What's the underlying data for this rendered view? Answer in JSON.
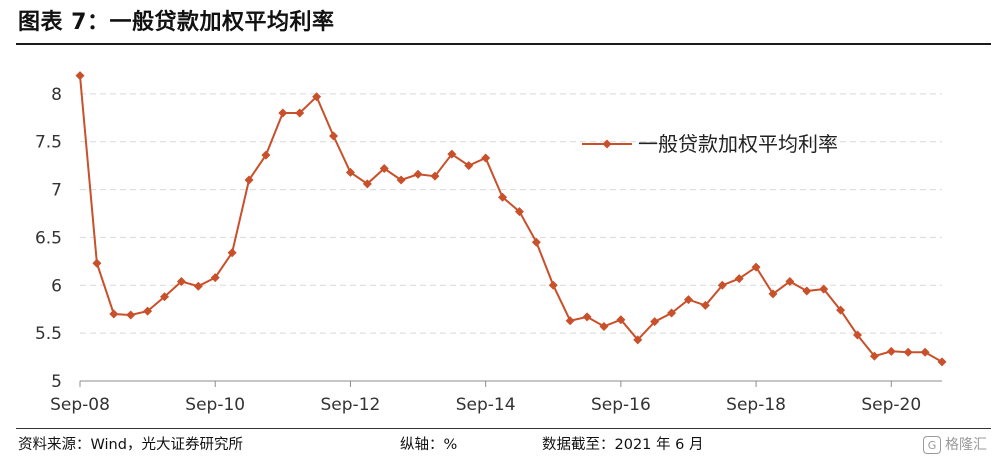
{
  "header": {
    "title": "图表 7：一般贷款加权平均利率"
  },
  "footer": {
    "source": "资料来源：Wind，光大证券研究所",
    "axis_note": "纵轴：%",
    "data_cutoff": "数据截至：2021 年 6 月"
  },
  "watermark": {
    "text": "格隆汇",
    "icon": "G"
  },
  "colors": {
    "line": "#c8502a",
    "grid": "#d9d9d9",
    "axis": "#8c8c8c"
  },
  "chart_data": {
    "type": "line",
    "title": "",
    "xlabel": "",
    "ylabel": "",
    "ylim": [
      5,
      8.5
    ],
    "y_ticks": [
      5,
      5.5,
      6,
      6.5,
      7,
      7.5,
      8
    ],
    "y_tick_labels": [
      "5",
      "5.5",
      "6",
      "6.5",
      "7",
      "7.5",
      "8"
    ],
    "x_ticks": [
      "Sep-08",
      "Sep-10",
      "Sep-12",
      "Sep-14",
      "Sep-16",
      "Sep-18",
      "Sep-20"
    ],
    "grid": "horizontal",
    "legend_position": "top-right",
    "series": [
      {
        "name": "一般贷款加权平均利率",
        "x": [
          "2008-09",
          "2008-12",
          "2009-03",
          "2009-06",
          "2009-09",
          "2009-12",
          "2010-03",
          "2010-06",
          "2010-09",
          "2010-12",
          "2011-03",
          "2011-06",
          "2011-09",
          "2011-12",
          "2012-03",
          "2012-06",
          "2012-09",
          "2012-12",
          "2013-03",
          "2013-06",
          "2013-09",
          "2013-12",
          "2014-03",
          "2014-06",
          "2014-09",
          "2014-12",
          "2015-03",
          "2015-06",
          "2015-09",
          "2015-12",
          "2016-03",
          "2016-06",
          "2016-09",
          "2016-12",
          "2017-03",
          "2017-06",
          "2017-09",
          "2017-12",
          "2018-03",
          "2018-06",
          "2018-09",
          "2018-12",
          "2019-03",
          "2019-06",
          "2019-09",
          "2019-12",
          "2020-03",
          "2020-06",
          "2020-09",
          "2020-12",
          "2021-03",
          "2021-06"
        ],
        "values": [
          8.19,
          6.23,
          5.7,
          5.69,
          5.73,
          5.88,
          6.04,
          5.99,
          6.08,
          6.34,
          7.1,
          7.36,
          7.8,
          7.8,
          7.97,
          7.56,
          7.18,
          7.06,
          7.22,
          7.1,
          7.16,
          7.14,
          7.37,
          7.25,
          7.33,
          6.92,
          6.77,
          6.45,
          6.0,
          5.63,
          5.67,
          5.57,
          5.64,
          5.43,
          5.62,
          5.71,
          5.85,
          5.79,
          6.0,
          6.07,
          6.19,
          5.91,
          6.04,
          5.94,
          5.96,
          5.74,
          5.48,
          5.26,
          5.31,
          5.3,
          5.3,
          5.2
        ]
      }
    ]
  }
}
